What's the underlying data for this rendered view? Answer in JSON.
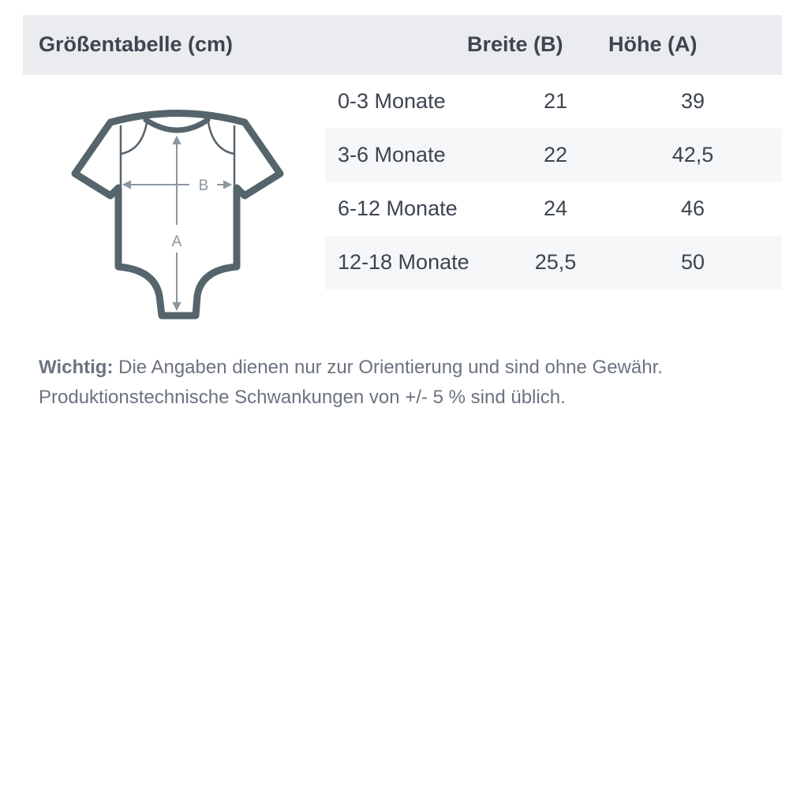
{
  "header": {
    "title": "Größentabelle (cm)",
    "col_width": "Breite (B)",
    "col_height": "Höhe (A)"
  },
  "illustration": {
    "icon": "baby-bodysuit-icon",
    "label_b": "B",
    "label_a": "A"
  },
  "rows": [
    {
      "size": "0-3 Monate",
      "width": "21",
      "height": "39"
    },
    {
      "size": "3-6 Monate",
      "width": "22",
      "height": "42,5"
    },
    {
      "size": "6-12 Monate",
      "width": "24",
      "height": "46"
    },
    {
      "size": "12-18 Monate",
      "width": "25,5",
      "height": "50"
    }
  ],
  "note": {
    "label": "Wichtig:",
    "line1": "Die Angaben dienen nur zur Orientierung und sind ohne Gewähr.",
    "line2": "Produktionstechnische Schwankungen von +/- 5 % sind üblich."
  },
  "colors": {
    "header_bg": "#ebecf0",
    "stripe": "#f6f7f9",
    "text": "#3d4550",
    "icon": "#56646c"
  }
}
